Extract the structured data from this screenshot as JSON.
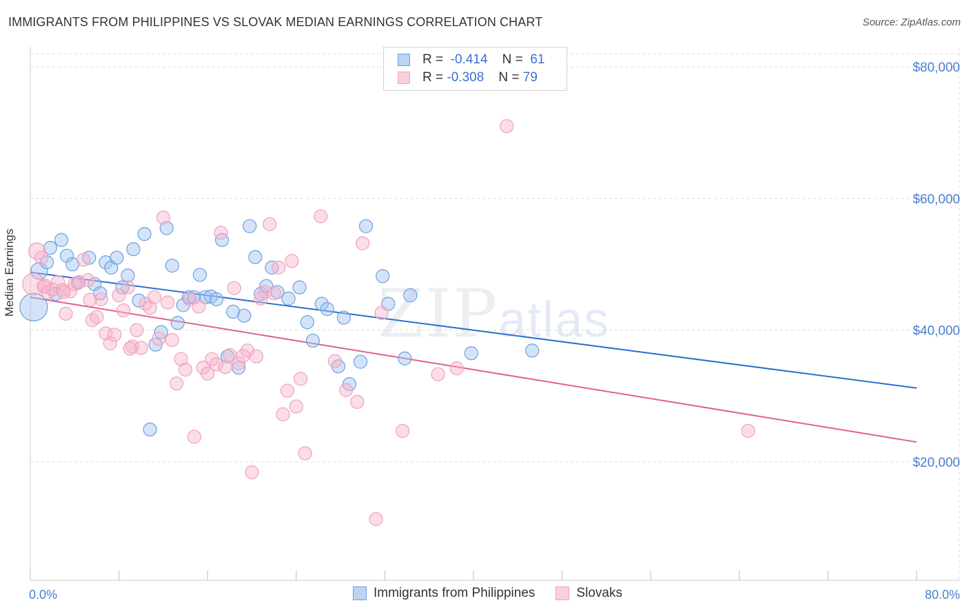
{
  "header": {
    "title": "IMMIGRANTS FROM PHILIPPINES VS SLOVAK MEDIAN EARNINGS CORRELATION CHART",
    "source": "Source: ZipAtlas.com"
  },
  "watermark": {
    "zip": "ZIP",
    "atlas": "atlas"
  },
  "legend": {
    "rows": [
      {
        "r_label": "R =",
        "r_value": "-0.414",
        "n_label": "N =",
        "n_value": "61"
      },
      {
        "r_label": "R =",
        "r_value": "-0.308",
        "n_label": "N =",
        "n_value": "79"
      }
    ]
  },
  "chart_data": {
    "type": "scatter",
    "title": "IMMIGRANTS FROM PHILIPPINES VS SLOVAK MEDIAN EARNINGS CORRELATION CHART",
    "xlabel": "",
    "ylabel": "Median Earnings",
    "xlim": [
      0,
      80
    ],
    "ylim": [
      2000,
      82000
    ],
    "x_tick_labels": [
      "0.0%",
      "80.0%"
    ],
    "y_ticks": [
      20000,
      40000,
      60000,
      80000
    ],
    "y_tick_labels": [
      "$20,000",
      "$40,000",
      "$60,000",
      "$80,000"
    ],
    "grid": true,
    "legend_position": "top-center",
    "series": [
      {
        "name": "Immigrants from Philippines",
        "color": "#6a9fe0",
        "line_color": "#2b6fd0",
        "trend": {
          "x": [
            0,
            80
          ],
          "y": [
            48800,
            31200
          ]
        },
        "points": [
          [
            0.3,
            43500
          ],
          [
            0.8,
            49000
          ],
          [
            1.5,
            50300
          ],
          [
            1.8,
            52500
          ],
          [
            2.3,
            45500
          ],
          [
            2.8,
            53700
          ],
          [
            3.3,
            51300
          ],
          [
            3.8,
            50000
          ],
          [
            4.3,
            47200
          ],
          [
            5.3,
            51000
          ],
          [
            5.8,
            47000
          ],
          [
            6.3,
            45600
          ],
          [
            6.8,
            50300
          ],
          [
            7.3,
            49500
          ],
          [
            7.8,
            51000
          ],
          [
            8.3,
            46500
          ],
          [
            8.8,
            48300
          ],
          [
            9.3,
            52300
          ],
          [
            9.8,
            44500
          ],
          [
            10.3,
            54600
          ],
          [
            10.8,
            24900
          ],
          [
            11.3,
            37800
          ],
          [
            11.8,
            39700
          ],
          [
            12.3,
            55500
          ],
          [
            12.8,
            49800
          ],
          [
            13.3,
            41100
          ],
          [
            13.8,
            43800
          ],
          [
            14.3,
            45000
          ],
          [
            14.8,
            45000
          ],
          [
            15.3,
            48400
          ],
          [
            15.8,
            45000
          ],
          [
            16.3,
            45100
          ],
          [
            16.8,
            44700
          ],
          [
            17.3,
            53700
          ],
          [
            17.8,
            36000
          ],
          [
            18.3,
            42800
          ],
          [
            18.8,
            34300
          ],
          [
            19.3,
            42200
          ],
          [
            19.8,
            55800
          ],
          [
            20.3,
            51100
          ],
          [
            20.8,
            45500
          ],
          [
            21.3,
            46700
          ],
          [
            21.8,
            49500
          ],
          [
            22.3,
            45800
          ],
          [
            23.3,
            44800
          ],
          [
            24.3,
            46500
          ],
          [
            25.0,
            41200
          ],
          [
            25.5,
            38400
          ],
          [
            26.3,
            44000
          ],
          [
            26.8,
            43200
          ],
          [
            27.8,
            34500
          ],
          [
            28.3,
            41900
          ],
          [
            28.8,
            31800
          ],
          [
            29.8,
            35200
          ],
          [
            30.3,
            55800
          ],
          [
            31.8,
            48200
          ],
          [
            32.3,
            44000
          ],
          [
            33.8,
            35700
          ],
          [
            34.3,
            45300
          ],
          [
            39.8,
            36500
          ],
          [
            45.3,
            36900
          ]
        ],
        "sizes": {
          "0.3": "large"
        }
      },
      {
        "name": "Slovaks",
        "color": "#f0a0bc",
        "line_color": "#e0608e",
        "trend": {
          "x": [
            0,
            80
          ],
          "y": [
            45000,
            23000
          ]
        },
        "points": [
          [
            0.3,
            47000
          ],
          [
            0.6,
            52000
          ],
          [
            1.0,
            51000
          ],
          [
            1.3,
            46800
          ],
          [
            1.6,
            45700
          ],
          [
            2.0,
            46200
          ],
          [
            2.5,
            47300
          ],
          [
            2.9,
            46100
          ],
          [
            3.2,
            42500
          ],
          [
            3.6,
            45900
          ],
          [
            4.0,
            47000
          ],
          [
            4.4,
            47300
          ],
          [
            4.8,
            50700
          ],
          [
            5.2,
            47600
          ],
          [
            5.6,
            41500
          ],
          [
            6.0,
            42000
          ],
          [
            6.4,
            44700
          ],
          [
            6.8,
            39500
          ],
          [
            7.2,
            38000
          ],
          [
            7.6,
            39300
          ],
          [
            8.0,
            45300
          ],
          [
            8.4,
            43000
          ],
          [
            8.8,
            46500
          ],
          [
            9.2,
            37500
          ],
          [
            9.6,
            40000
          ],
          [
            10.0,
            37300
          ],
          [
            10.4,
            44000
          ],
          [
            10.8,
            43400
          ],
          [
            11.2,
            45000
          ],
          [
            11.6,
            38700
          ],
          [
            12.0,
            57100
          ],
          [
            12.4,
            44200
          ],
          [
            12.8,
            38500
          ],
          [
            13.2,
            31900
          ],
          [
            13.6,
            35600
          ],
          [
            14.0,
            34000
          ],
          [
            14.4,
            44700
          ],
          [
            14.8,
            23800
          ],
          [
            15.2,
            43600
          ],
          [
            15.6,
            34300
          ],
          [
            16.0,
            33400
          ],
          [
            16.4,
            35600
          ],
          [
            16.8,
            34800
          ],
          [
            17.2,
            54800
          ],
          [
            17.6,
            34400
          ],
          [
            18.0,
            36200
          ],
          [
            18.4,
            46400
          ],
          [
            18.8,
            35000
          ],
          [
            19.2,
            36100
          ],
          [
            19.6,
            36900
          ],
          [
            20.0,
            18400
          ],
          [
            20.4,
            36000
          ],
          [
            20.8,
            44800
          ],
          [
            21.2,
            45800
          ],
          [
            21.6,
            56100
          ],
          [
            22.0,
            45600
          ],
          [
            22.4,
            49500
          ],
          [
            22.8,
            27200
          ],
          [
            23.2,
            30800
          ],
          [
            23.6,
            50500
          ],
          [
            24.0,
            28400
          ],
          [
            24.4,
            32600
          ],
          [
            24.8,
            21300
          ],
          [
            26.2,
            57300
          ],
          [
            27.5,
            35300
          ],
          [
            28.5,
            30900
          ],
          [
            29.5,
            29100
          ],
          [
            30.0,
            53200
          ],
          [
            31.2,
            11300
          ],
          [
            31.7,
            42600
          ],
          [
            33.6,
            24700
          ],
          [
            36.8,
            33300
          ],
          [
            38.5,
            34200
          ],
          [
            43.0,
            71000
          ],
          [
            64.8,
            24700
          ],
          [
            1.2,
            46600
          ],
          [
            3.0,
            45800
          ],
          [
            5.4,
            44600
          ],
          [
            9.0,
            37200
          ]
        ]
      }
    ]
  },
  "bottom_legend": {
    "items": [
      {
        "label": "Immigrants from Philippines"
      },
      {
        "label": "Slovaks"
      }
    ]
  }
}
